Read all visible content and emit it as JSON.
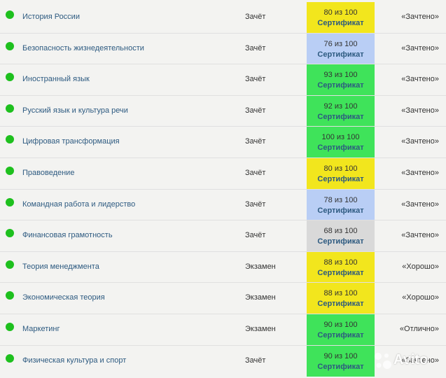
{
  "rows": [
    {
      "subject": "История России",
      "type": "Зачёт",
      "score": "80 из 100",
      "cert": "Сертификат",
      "grade": "«Зачтено»",
      "color": "#f2e61d"
    },
    {
      "subject": "Безопасность жизнедеятельности",
      "type": "Зачёт",
      "score": "76 из 100",
      "cert": "Сертификат",
      "grade": "«Зачтено»",
      "color": "#b9cef5"
    },
    {
      "subject": "Иностранный язык",
      "type": "Зачёт",
      "score": "93 из 100",
      "cert": "Сертификат",
      "grade": "«Зачтено»",
      "color": "#3fe35a"
    },
    {
      "subject": "Русский язык и культура речи",
      "type": "Зачёт",
      "score": "92 из 100",
      "cert": "Сертификат",
      "grade": "«Зачтено»",
      "color": "#3fe35a"
    },
    {
      "subject": "Цифровая трансформация",
      "type": "Зачёт",
      "score": "100 из 100",
      "cert": "Сертификат",
      "grade": "«Зачтено»",
      "color": "#3fe35a"
    },
    {
      "subject": "Правоведение",
      "type": "Зачёт",
      "score": "80 из 100",
      "cert": "Сертификат",
      "grade": "«Зачтено»",
      "color": "#f2e61d"
    },
    {
      "subject": "Командная работа и лидерство",
      "type": "Зачёт",
      "score": "78 из 100",
      "cert": "Сертификат",
      "grade": "«Зачтено»",
      "color": "#b9cef5"
    },
    {
      "subject": "Финансовая грамотность",
      "type": "Зачёт",
      "score": "68 из 100",
      "cert": "Сертификат",
      "grade": "«Зачтено»",
      "color": "#d9d9d9"
    },
    {
      "subject": "Теория менеджмента",
      "type": "Экзамен",
      "score": "88 из 100",
      "cert": "Сертификат",
      "grade": "«Хорошо»",
      "color": "#f2e61d"
    },
    {
      "subject": "Экономическая теория",
      "type": "Экзамен",
      "score": "88 из 100",
      "cert": "Сертификат",
      "grade": "«Хорошо»",
      "color": "#f2e61d"
    },
    {
      "subject": "Маркетинг",
      "type": "Экзамен",
      "score": "90 из 100",
      "cert": "Сертификат",
      "grade": "«Отлично»",
      "color": "#3fe35a"
    },
    {
      "subject": "Физическая культура и спорт",
      "type": "Зачёт",
      "score": "90 из 100",
      "cert": "Сертификат",
      "grade": "«Зачтено»",
      "color": "#3fe35a"
    }
  ],
  "status_color": "#1ec01e",
  "watermark": {
    "text": "Avito",
    "icon": "avito-logo-icon"
  }
}
